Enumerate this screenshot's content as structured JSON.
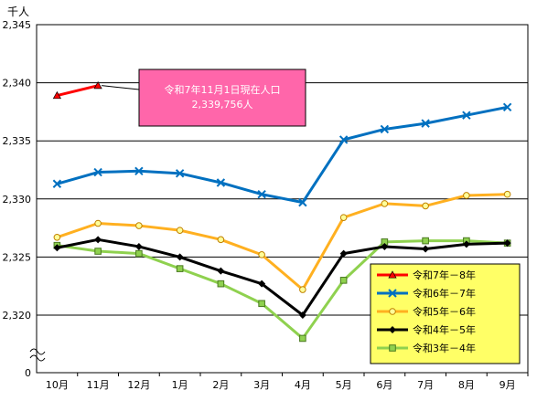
{
  "chart_data": {
    "type": "line",
    "unit_label": "千人",
    "categories": [
      "10月",
      "11月",
      "12月",
      "1月",
      "2月",
      "3月",
      "4月",
      "5月",
      "6月",
      "7月",
      "8月",
      "9月"
    ],
    "yticks": [
      "2,345",
      "2,340",
      "2,335",
      "2,330",
      "2,325",
      "2,320"
    ],
    "ytick_values": [
      2345,
      2340,
      2335,
      2330,
      2325,
      2320
    ],
    "y_zero_label": "0",
    "ylim": [
      2320,
      2345
    ],
    "y_axis_broken": true,
    "grid": true,
    "legend_position": "bottom-right",
    "annotation": {
      "line1": "令和7年11月1日現在人口",
      "line2": "2,339,756人",
      "points_to": "11月"
    },
    "series": [
      {
        "name": "令和7年－8年",
        "color": "#ff0000",
        "marker": "triangle",
        "values": [
          2338.9,
          2339.76,
          null,
          null,
          null,
          null,
          null,
          null,
          null,
          null,
          null,
          null
        ]
      },
      {
        "name": "令和6年－7年",
        "color": "#0070c0",
        "marker": "x",
        "values": [
          2331.3,
          2332.3,
          2332.4,
          2332.2,
          2331.4,
          2330.4,
          2329.7,
          2335.1,
          2336.0,
          2336.5,
          2337.2,
          2337.9
        ]
      },
      {
        "name": "令和5年－6年",
        "color": "#ffb020",
        "marker": "circle",
        "values": [
          2326.7,
          2327.9,
          2327.7,
          2327.3,
          2326.5,
          2325.2,
          2322.2,
          2328.4,
          2329.6,
          2329.4,
          2330.3,
          2330.4
        ]
      },
      {
        "name": "令和4年－5年",
        "color": "#000000",
        "marker": "diamond",
        "values": [
          2325.8,
          2326.5,
          2325.9,
          2325.0,
          2323.8,
          2322.7,
          2320.0,
          2325.3,
          2325.9,
          2325.7,
          2326.1,
          2326.2
        ]
      },
      {
        "name": "令和3年－4年",
        "color": "#8fd14f",
        "marker": "square",
        "values": [
          2326.0,
          2325.5,
          2325.3,
          2324.0,
          2322.7,
          2321.0,
          2318.0,
          2323.0,
          2326.3,
          2326.4,
          2326.4,
          2326.2
        ]
      }
    ],
    "colors": {
      "plot_bg": "#ffffff",
      "grid": "#000000",
      "annotation_bg": "#ff66aa",
      "legend_bg": "#ffff66"
    }
  }
}
